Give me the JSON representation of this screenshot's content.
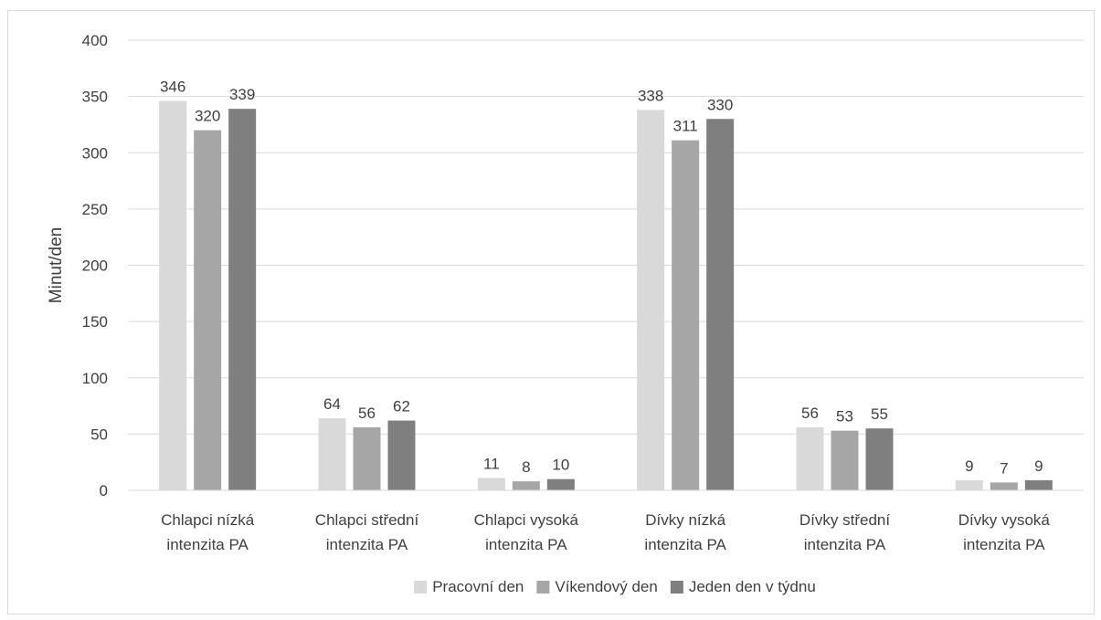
{
  "chart_data": {
    "type": "bar",
    "title": "",
    "xlabel": "",
    "ylabel": "Minut/den",
    "ylim": [
      0,
      400
    ],
    "yticks": [
      0,
      50,
      100,
      150,
      200,
      250,
      300,
      350,
      400
    ],
    "grid": true,
    "legend_position": "bottom",
    "categories": [
      [
        "Chlapci nízká",
        "intenzita PA"
      ],
      [
        "Chlapci střední",
        "intenzita PA"
      ],
      [
        "Chlapci vysoká",
        "intenzita PA"
      ],
      [
        "Dívky nízká",
        "intenzita PA"
      ],
      [
        "Dívky střední",
        "intenzita PA"
      ],
      [
        "Dívky vysoká",
        "intenzita  PA"
      ]
    ],
    "series": [
      {
        "name": "Pracovní den",
        "color": "#d9d9d9",
        "values": [
          346,
          64,
          11,
          338,
          56,
          9
        ]
      },
      {
        "name": "Víkendový den",
        "color": "#a6a6a6",
        "values": [
          320,
          56,
          8,
          311,
          53,
          7
        ]
      },
      {
        "name": "Jeden den v týdnu",
        "color": "#7f7f7f",
        "values": [
          339,
          62,
          10,
          330,
          55,
          9
        ]
      }
    ]
  }
}
